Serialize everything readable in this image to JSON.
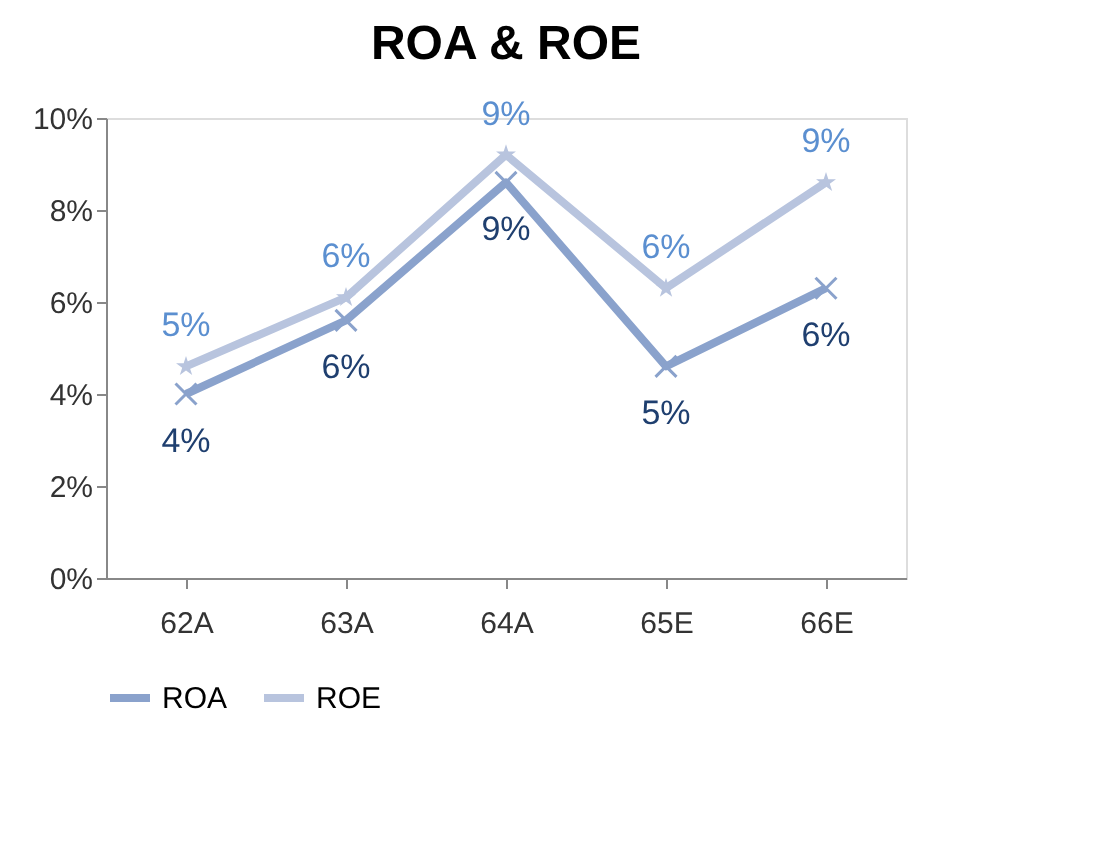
{
  "chart_data": {
    "type": "line",
    "title": "ROA & ROE",
    "categories": [
      "62A",
      "63A",
      "64A",
      "65E",
      "66E"
    ],
    "series": [
      {
        "name": "ROA",
        "color": "#8aa2cc",
        "marker": "cross",
        "values": [
          4.0,
          5.6,
          8.6,
          4.6,
          6.3
        ],
        "value_labels": [
          "4%",
          "6%",
          "9%",
          "5%",
          "6%"
        ]
      },
      {
        "name": "ROE",
        "color": "#b8c4de",
        "marker": "star",
        "values": [
          4.6,
          6.1,
          9.2,
          6.3,
          8.6
        ],
        "value_labels": [
          "5%",
          "6%",
          "9%",
          "6%",
          "9%"
        ]
      }
    ],
    "ylim": [
      0,
      10
    ],
    "yticks": [
      {
        "value": 0,
        "label": "0%"
      },
      {
        "value": 2,
        "label": "2%"
      },
      {
        "value": 4,
        "label": "4%"
      },
      {
        "value": 6,
        "label": "6%"
      },
      {
        "value": 8,
        "label": "8%"
      },
      {
        "value": 10,
        "label": "10%"
      }
    ],
    "grid": false,
    "legend": "bottom",
    "line_style": "solid"
  }
}
